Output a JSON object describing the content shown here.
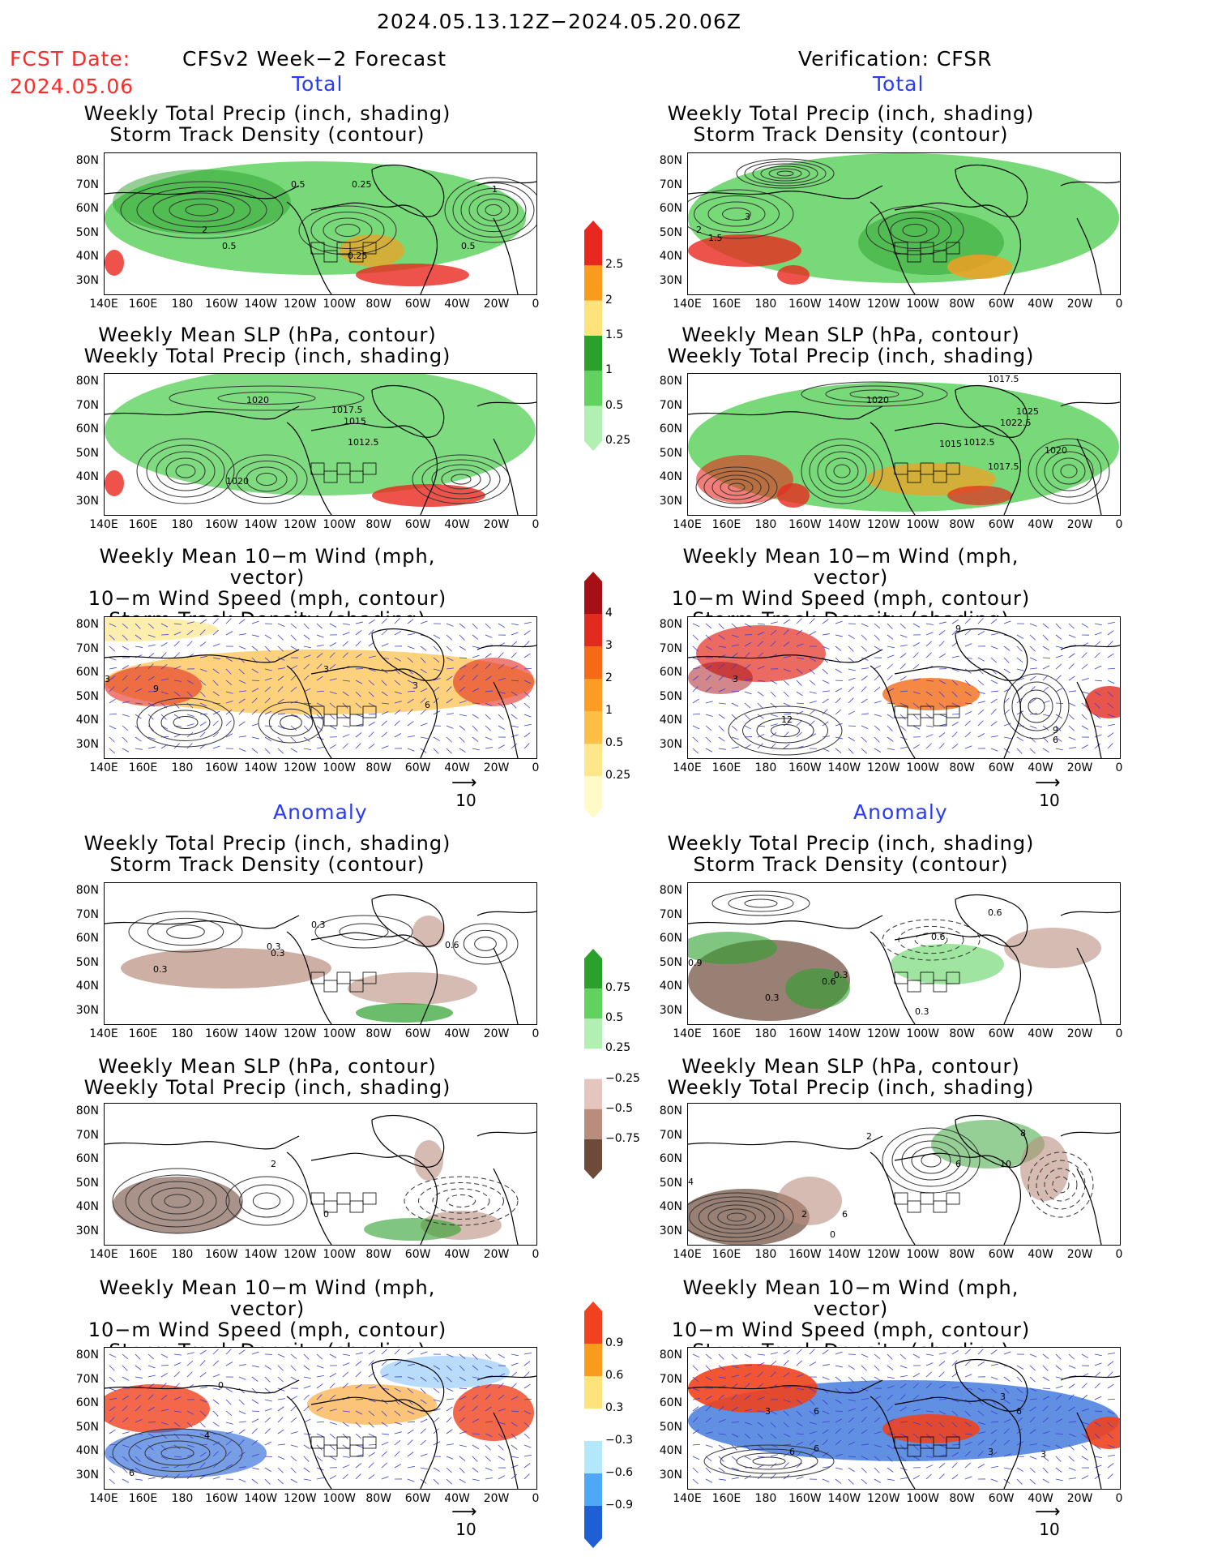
{
  "header": {
    "date_range": "2024.05.13.12Z−2024.05.20.06Z",
    "fcst_label": "FCST Date:",
    "fcst_date": "2024.05.06",
    "left_title": "CFSv2 Week−2 Forecast",
    "right_title": "Verification: CFSR",
    "total_label": "Total",
    "anomaly_label": "Anomaly"
  },
  "axes": {
    "lat_labels": [
      "80N",
      "70N",
      "60N",
      "50N",
      "40N",
      "30N"
    ],
    "lon_labels": [
      "140E",
      "160E",
      "180",
      "160W",
      "140W",
      "120W",
      "100W",
      "80W",
      "60W",
      "40W",
      "20W",
      "0"
    ]
  },
  "panels": [
    {
      "id": "fc-total-precip",
      "title1": "Weekly Total Precip (inch, shading)",
      "title2": "Storm Track Density (contour)",
      "title3": ""
    },
    {
      "id": "fc-total-slp",
      "title1": "Weekly Mean SLP (hPa, contour)",
      "title2": "Weekly Total Precip (inch, shading)",
      "title3": ""
    },
    {
      "id": "fc-total-wind",
      "title1": "Weekly Mean 10−m Wind (mph, vector)",
      "title2": "10−m Wind Speed (mph, contour)",
      "title3": "Storm Track Density (shading)"
    },
    {
      "id": "fc-anom-precip",
      "title1": "Weekly Total Precip (inch, shading)",
      "title2": "Storm Track Density (contour)",
      "title3": ""
    },
    {
      "id": "fc-anom-slp",
      "title1": "Weekly Mean SLP (hPa, contour)",
      "title2": "Weekly Total Precip (inch, shading)",
      "title3": ""
    },
    {
      "id": "fc-anom-wind",
      "title1": "Weekly Mean 10−m Wind (mph, vector)",
      "title2": "10−m Wind Speed (mph, contour)",
      "title3": "Storm Track Density (shading)"
    }
  ],
  "contour_labels": {
    "fc_total_precip": [
      "0.5",
      "0.25",
      "1",
      "2",
      "0.5",
      "0.25",
      "0.5"
    ],
    "vf_total_precip": [
      "3",
      "2",
      "1.5"
    ],
    "fc_total_slp": [
      "1020",
      "1017.5",
      "1015",
      "1012.5",
      "1020"
    ],
    "vf_total_slp": [
      "1020",
      "1017.5",
      "1025",
      "1022.5",
      "1015",
      "1012.5",
      "1020",
      "1017.5"
    ],
    "fc_total_wind": [
      "3",
      "9",
      "3",
      "3",
      "6"
    ],
    "vf_total_wind": [
      "3",
      "12",
      "9",
      "6",
      "9"
    ],
    "fc_anom_precip": [
      "0.3",
      "0.3",
      "0.3",
      "0.3",
      "0.6"
    ],
    "vf_anom_precip": [
      "0.9",
      "0.3",
      "0.6",
      "0.6",
      "0.3",
      "0.6",
      "0.3"
    ],
    "fc_anom_slp": [
      "2",
      "0"
    ],
    "vf_anom_slp": [
      "4",
      "2",
      "6",
      "8",
      "10",
      "6",
      "2",
      "0"
    ],
    "fc_anom_wind": [
      "0",
      "4",
      "6"
    ],
    "vf_anom_wind": [
      "3",
      "6",
      "3",
      "6",
      "3",
      "6",
      "6",
      "3"
    ]
  },
  "vector_ref": "10",
  "colorbars": {
    "precip_total": {
      "labels": [
        "2.5",
        "2",
        "1.5",
        "1",
        "0.5",
        "0.25"
      ],
      "colors": [
        "#e8281e",
        "#f99c1e",
        "#fde37a",
        "#2ca02c",
        "#5fd25f",
        "#b2f0b2"
      ]
    },
    "storm_total": {
      "labels": [
        "4",
        "3",
        "2",
        "1",
        "0.5",
        "0.25"
      ],
      "colors": [
        "#a50f15",
        "#e22b1f",
        "#f46a16",
        "#fd9c24",
        "#fdbf45",
        "#fde78a",
        "#fffac8"
      ]
    },
    "precip_anom": {
      "labels": [
        "0.75",
        "0.5",
        "0.25",
        "−0.25",
        "−0.5",
        "−0.75"
      ],
      "colors": [
        "#2ca02c",
        "#5fd25f",
        "#b2f0b2",
        "#ffffff",
        "#e3c6bd",
        "#b98d7e",
        "#6e4a3a"
      ]
    },
    "storm_anom": {
      "labels": [
        "0.9",
        "0.6",
        "0.3",
        "−0.3",
        "−0.6",
        "−0.9"
      ],
      "colors": [
        "#f0421e",
        "#f99c1e",
        "#fde37a",
        "#ffffff",
        "#b3e8fb",
        "#4fa8f5",
        "#1e5fd6"
      ]
    }
  }
}
